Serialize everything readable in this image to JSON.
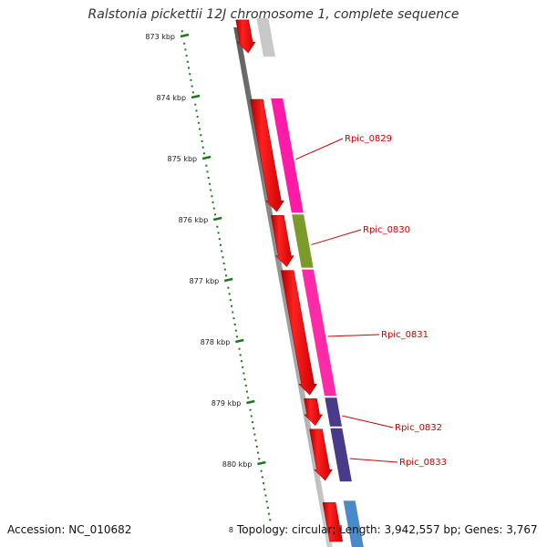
{
  "title": "Ralstonia pickettii 12J chromosome 1, complete sequence",
  "accession": "Accession: NC_010682",
  "summary": "Topology: circular; Length: 3,942,557 bp; Genes: 3,767",
  "ruler": {
    "unit": "kbp",
    "start_kbp": 873,
    "end_kbp": 880,
    "labels": [
      "873 kbp",
      "874 kbp",
      "875 kbp",
      "876 kbp",
      "877 kbp",
      "878 kbp",
      "879 kbp",
      "880 kbp"
    ],
    "truncated_label": "8",
    "color": "#1a7a1a"
  },
  "genes": [
    {
      "name": "Rpic_0829",
      "start_kbp": 874.0,
      "end_kbp": 875.9,
      "color": "#ff1aa8"
    },
    {
      "name": "Rpic_0830",
      "start_kbp": 875.9,
      "end_kbp": 876.8,
      "color": "#7a9a2a"
    },
    {
      "name": "Rpic_0831",
      "start_kbp": 876.8,
      "end_kbp": 878.9,
      "color": "#ff2aa8"
    },
    {
      "name": "Rpic_0832",
      "start_kbp": 878.9,
      "end_kbp": 879.4,
      "color": "#4a3a8a"
    },
    {
      "name": "Rpic_0833",
      "start_kbp": 879.4,
      "end_kbp": 880.3,
      "color": "#4a3a8a"
    }
  ],
  "cds": [
    {
      "start_kbp": 872.7,
      "end_kbp": 873.3
    },
    {
      "start_kbp": 874.0,
      "end_kbp": 875.9
    },
    {
      "start_kbp": 875.9,
      "end_kbp": 876.8
    },
    {
      "start_kbp": 876.8,
      "end_kbp": 878.9
    },
    {
      "start_kbp": 878.9,
      "end_kbp": 879.4
    },
    {
      "start_kbp": 879.4,
      "end_kbp": 880.3
    },
    {
      "start_kbp": 880.6,
      "end_kbp": 881.0
    }
  ],
  "grey_feature": {
    "start_kbp": 872.7,
    "end_kbp": 873.3,
    "color": "#c8c8c8"
  },
  "blue_feature": {
    "start_kbp": 880.6,
    "end_kbp": 881.0,
    "color": "#4a8ac8"
  },
  "cds_color": "#ee1111",
  "label_color": "#cc0000"
}
